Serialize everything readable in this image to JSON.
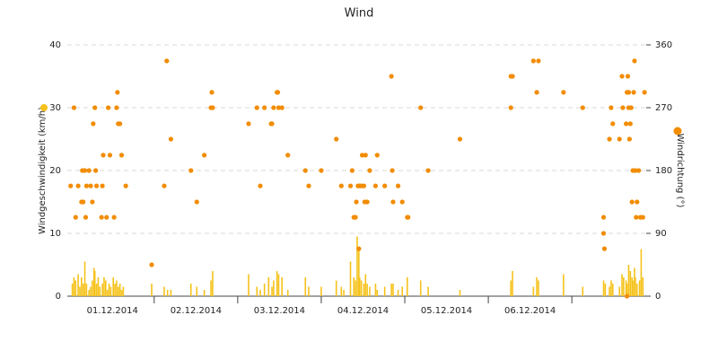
{
  "chart_data": {
    "type": "bar-scatter",
    "title": "Wind",
    "categories": [
      "01.12.2014",
      "02.12.2014",
      "03.12.2014",
      "04.12.2014",
      "05.12.2014",
      "06.12.2014",
      null
    ],
    "xlim": [
      -0.04,
      6.89
    ],
    "ylim": [
      0,
      40
    ],
    "yticks": [
      0,
      10,
      20,
      30,
      40
    ],
    "y2lim": [
      0,
      360
    ],
    "y2ticks": [
      0,
      90,
      180,
      270,
      360
    ],
    "grid": true,
    "series": [
      {
        "name": "Windgeschwindigkeit (km/h)",
        "type": "bar",
        "axis": "y",
        "color": "#f5c21b",
        "x": [
          0.02,
          0.04,
          0.06,
          0.09,
          0.11,
          0.13,
          0.15,
          0.17,
          0.19,
          0.22,
          0.24,
          0.26,
          0.28,
          0.29,
          0.31,
          0.33,
          0.35,
          0.38,
          0.4,
          0.42,
          0.44,
          0.46,
          0.48,
          0.51,
          0.53,
          0.55,
          0.57,
          0.59,
          0.61,
          0.63,
          0.97,
          1.12,
          1.16,
          1.2,
          1.44,
          1.51,
          1.6,
          1.68,
          1.7,
          2.13,
          2.23,
          2.27,
          2.32,
          2.37,
          2.41,
          2.43,
          2.47,
          2.49,
          2.53,
          2.6,
          2.81,
          2.85,
          3.0,
          3.18,
          3.24,
          3.27,
          3.35,
          3.39,
          3.41,
          3.43,
          3.45,
          3.46,
          3.48,
          3.51,
          3.53,
          3.55,
          3.58,
          3.65,
          3.67,
          3.76,
          3.84,
          3.86,
          3.92,
          3.97,
          4.03,
          4.19,
          4.28,
          4.66,
          5.27,
          5.29,
          5.54,
          5.58,
          5.6,
          5.9,
          6.13,
          6.38,
          6.4,
          6.45,
          6.47,
          6.49,
          6.57,
          6.6,
          6.62,
          6.65,
          6.66,
          6.68,
          6.7,
          6.72,
          6.73,
          6.75,
          6.76,
          6.78,
          6.81,
          6.83,
          6.85
        ],
        "values": [
          2,
          3,
          2.5,
          3.5,
          1.5,
          3,
          2,
          5.5,
          2,
          1,
          1.5,
          2.5,
          4.5,
          4,
          2,
          3,
          1.5,
          2,
          3,
          2.5,
          1,
          2,
          1.5,
          3,
          2,
          2.5,
          1.5,
          2,
          1,
          1.5,
          2,
          1.5,
          1,
          1,
          2,
          1.5,
          1,
          2.5,
          4,
          3.5,
          1.5,
          1,
          2,
          3,
          1.5,
          2.5,
          4,
          3.5,
          3,
          1,
          3,
          1.5,
          1.5,
          2.5,
          1.5,
          1,
          5.5,
          3,
          2.5,
          9.5,
          7.5,
          3,
          2.5,
          2,
          3.5,
          2,
          1.5,
          2,
          1,
          1.5,
          2,
          2,
          1,
          1.5,
          3,
          2.5,
          1.5,
          1,
          2.5,
          4,
          1.5,
          3,
          2.5,
          3.5,
          1.5,
          2.5,
          2,
          1.5,
          2.5,
          2,
          1.5,
          3.5,
          3,
          2.5,
          2,
          5,
          4,
          3,
          2.5,
          4.5,
          3,
          2,
          2.5,
          7.5,
          3
        ]
      },
      {
        "name": "Windrichtung (°)",
        "type": "scatter",
        "axis": "y2",
        "color": "#f28c00",
        "x": [
          0.0,
          0.04,
          0.06,
          0.09,
          0.13,
          0.14,
          0.15,
          0.17,
          0.18,
          0.19,
          0.22,
          0.24,
          0.26,
          0.27,
          0.29,
          0.3,
          0.31,
          0.37,
          0.38,
          0.39,
          0.43,
          0.45,
          0.47,
          0.52,
          0.55,
          0.56,
          0.57,
          0.59,
          0.61,
          0.66,
          0.97,
          1.12,
          1.15,
          1.2,
          1.44,
          1.51,
          1.6,
          1.68,
          1.69,
          1.7,
          2.13,
          2.23,
          2.27,
          2.32,
          2.4,
          2.41,
          2.43,
          2.47,
          2.48,
          2.49,
          2.53,
          2.6,
          2.81,
          2.85,
          3.0,
          3.18,
          3.24,
          3.35,
          3.37,
          3.39,
          3.41,
          3.42,
          3.44,
          3.45,
          3.46,
          3.48,
          3.49,
          3.51,
          3.52,
          3.53,
          3.55,
          3.58,
          3.65,
          3.67,
          3.76,
          3.84,
          3.85,
          3.86,
          3.92,
          3.97,
          4.03,
          4.04,
          4.19,
          4.28,
          4.66,
          5.27,
          5.27,
          5.29,
          5.54,
          5.58,
          5.6,
          5.9,
          6.13,
          6.38,
          6.38,
          6.39,
          6.45,
          6.47,
          6.49,
          6.57,
          6.6,
          6.61,
          6.65,
          6.66,
          6.66,
          6.67,
          6.68,
          6.68,
          6.69,
          6.7,
          6.71,
          6.72,
          6.73,
          6.74,
          6.75,
          6.76,
          6.77,
          6.78,
          6.8,
          6.82,
          6.85,
          6.87
        ],
        "values": [
          158,
          270,
          113,
          158,
          135,
          180,
          135,
          180,
          113,
          158,
          180,
          158,
          135,
          247,
          270,
          180,
          158,
          113,
          158,
          202,
          113,
          270,
          202,
          113,
          270,
          292,
          247,
          247,
          202,
          158,
          45,
          158,
          337,
          225,
          180,
          135,
          202,
          270,
          292,
          270,
          247,
          270,
          158,
          270,
          247,
          247,
          270,
          292,
          292,
          270,
          270,
          202,
          180,
          158,
          180,
          225,
          158,
          158,
          180,
          113,
          113,
          135,
          158,
          68,
          158,
          158,
          202,
          158,
          135,
          202,
          135,
          180,
          158,
          202,
          158,
          315,
          180,
          135,
          158,
          135,
          113,
          113,
          270,
          180,
          225,
          315,
          270,
          315,
          337,
          292,
          337,
          292,
          270,
          113,
          90,
          68,
          225,
          270,
          247,
          225,
          315,
          270,
          247,
          292,
          0,
          315,
          292,
          270,
          225,
          247,
          270,
          135,
          180,
          292,
          337,
          180,
          113,
          135,
          180,
          113,
          113,
          292
        ]
      }
    ]
  }
}
